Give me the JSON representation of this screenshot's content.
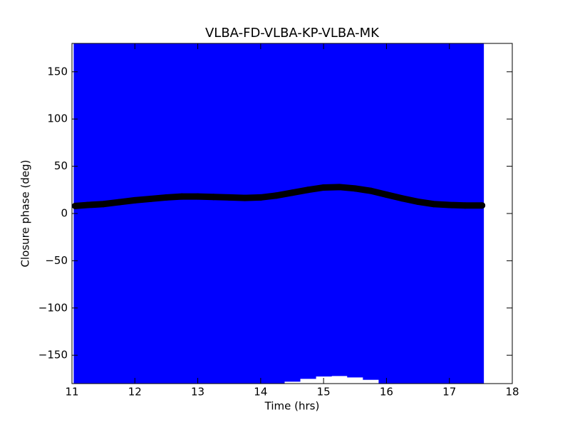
{
  "chart_data": {
    "type": "errorbar",
    "title": "VLBA-FD-VLBA-KP-VLBA-MK",
    "x_label": "Time (hrs)",
    "y_label": "Closure phase (deg)",
    "x": [
      11.05,
      11.25,
      11.5,
      11.75,
      12,
      12.25,
      12.5,
      12.75,
      13,
      13.25,
      13.5,
      13.75,
      14,
      14.25,
      14.5,
      14.75,
      15,
      15.25,
      15.5,
      15.75,
      16,
      16.25,
      16.5,
      16.75,
      17,
      17.25,
      17.52
    ],
    "values": [
      8,
      9,
      10,
      12,
      14,
      15.5,
      17,
      18,
      18,
      17.5,
      17,
      16.5,
      17,
      19,
      22,
      25,
      27.5,
      28,
      26.5,
      24,
      20,
      16,
      12.5,
      10,
      9,
      8.5,
      8.5
    ],
    "errors": [
      200,
      200,
      200,
      200,
      200,
      200,
      200,
      200,
      200,
      200,
      200,
      200,
      200,
      200,
      200,
      200,
      200,
      200,
      200,
      200,
      200,
      200,
      200,
      200,
      200,
      200,
      200
    ],
    "color": "#000000",
    "error_color": "#0000ff",
    "xlim": [
      11,
      18
    ],
    "xticks": [
      11,
      12,
      13,
      14,
      15,
      16,
      17,
      18
    ],
    "ylim": [
      -180,
      180
    ],
    "yticks": [
      {
        "value": -150,
        "label": "−150"
      },
      {
        "value": -100,
        "label": "−100"
      },
      {
        "value": -50,
        "label": "−50"
      },
      0,
      50,
      100,
      150
    ]
  }
}
